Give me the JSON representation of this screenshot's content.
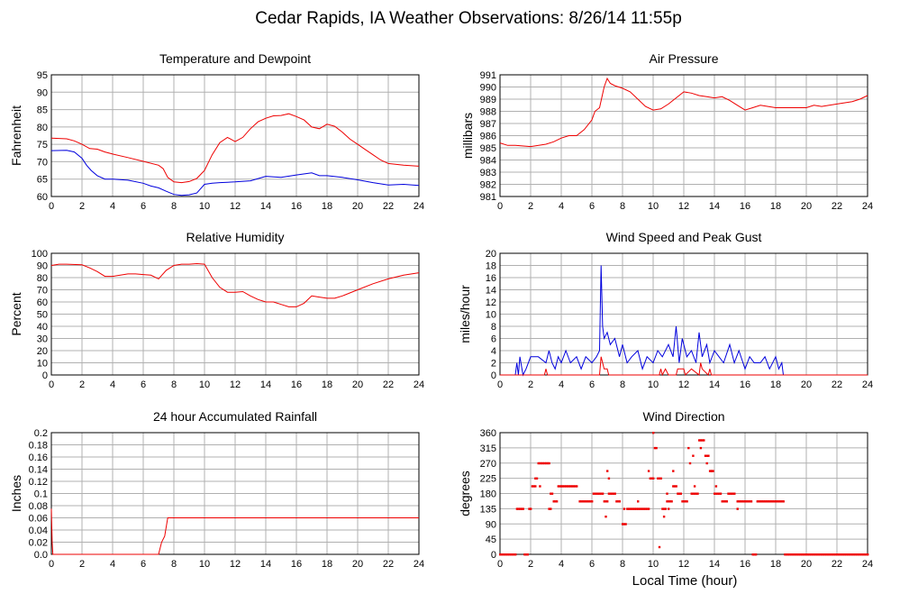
{
  "page": {
    "title": "Cedar Rapids, IA Weather Observations: 8/26/14 11:55p",
    "xlabel": "Local Time (hour)"
  },
  "colors": {
    "red": "#ee0000",
    "blue": "#0000dd",
    "grid": "#b0b0b0"
  },
  "chart_data": [
    {
      "id": "temp",
      "type": "line",
      "title": "Temperature and Dewpoint",
      "ylabel": "Fahrenheit",
      "xlim": [
        0,
        24
      ],
      "ylim": [
        60,
        95
      ],
      "xticks": [
        "0",
        "2",
        "4",
        "6",
        "8",
        "10",
        "12",
        "14",
        "16",
        "18",
        "20",
        "22",
        "24"
      ],
      "yticks": [
        "60",
        "65",
        "70",
        "75",
        "80",
        "85",
        "90",
        "95"
      ],
      "grid": true,
      "series": [
        {
          "color": "red",
          "style": "line",
          "x": [
            0,
            1,
            1.5,
            2,
            2.5,
            3,
            3.5,
            4,
            5,
            6,
            7,
            7.3,
            7.6,
            8,
            8.5,
            9,
            9.5,
            10,
            10.5,
            11,
            11.5,
            12,
            12.5,
            13,
            13.5,
            14,
            14.5,
            15,
            15.5,
            16,
            16.5,
            17,
            17.5,
            18,
            18.5,
            19,
            19.5,
            20,
            20.5,
            21,
            21.5,
            22,
            23,
            24
          ],
          "y": [
            76.8,
            76.6,
            76,
            75,
            73.8,
            73.6,
            72.8,
            72.2,
            71.2,
            70.1,
            69,
            68,
            65.5,
            64.2,
            64,
            64.3,
            65.2,
            67.5,
            72,
            75.5,
            77,
            75.8,
            77,
            79.5,
            81.5,
            82.5,
            83.2,
            83.3,
            83.8,
            83,
            82,
            80,
            79.5,
            80.8,
            80.2,
            78.5,
            76.5,
            75,
            73.5,
            72,
            70.5,
            69.5,
            69,
            68.7
          ]
        },
        {
          "color": "blue",
          "style": "line",
          "x": [
            0,
            1,
            1.5,
            2,
            2.3,
            2.6,
            3,
            3.5,
            4,
            5,
            6,
            6.5,
            7,
            7.5,
            8,
            8.5,
            9,
            9.5,
            10,
            10.5,
            11,
            12,
            13,
            14,
            15,
            16,
            17,
            17.5,
            18,
            19,
            20,
            21,
            22,
            23,
            24
          ],
          "y": [
            73.2,
            73.3,
            72.8,
            71,
            69,
            67.5,
            66,
            65,
            65,
            64.7,
            63.8,
            63,
            62.5,
            61.5,
            60.6,
            60.3,
            60.5,
            61,
            63.5,
            63.8,
            64,
            64.2,
            64.5,
            65.8,
            65.5,
            66.2,
            66.8,
            66,
            66,
            65.5,
            64.8,
            64,
            63.3,
            63.5,
            63.2
          ]
        }
      ]
    },
    {
      "id": "pres",
      "type": "line",
      "title": "Air Pressure",
      "ylabel": "millibars",
      "xlim": [
        0,
        24
      ],
      "ylim": [
        981,
        991
      ],
      "xticks": [
        "0",
        "2",
        "4",
        "6",
        "8",
        "10",
        "12",
        "14",
        "16",
        "18",
        "20",
        "22",
        "24"
      ],
      "yticks": [
        "981",
        "982",
        "983",
        "984",
        "985",
        "986",
        "987",
        "988",
        "989",
        "990",
        "991"
      ],
      "grid": true,
      "series": [
        {
          "color": "red",
          "style": "line",
          "x": [
            0,
            0.5,
            1,
            2,
            3,
            3.5,
            4,
            4.5,
            5,
            5.5,
            6,
            6.2,
            6.5,
            6.8,
            7,
            7.2,
            7.5,
            8,
            8.5,
            9,
            9.5,
            10,
            10.5,
            11,
            11.5,
            12,
            12.5,
            13,
            13.5,
            14,
            14.5,
            15,
            15.5,
            16,
            16.5,
            17,
            17.5,
            18,
            19,
            20,
            20.5,
            21,
            22,
            23,
            23.5,
            24
          ],
          "y": [
            985.4,
            985.2,
            985.2,
            985.1,
            985.3,
            985.5,
            985.8,
            986,
            986,
            986.5,
            987.3,
            988,
            988.3,
            990,
            990.7,
            990.3,
            990.1,
            989.9,
            989.6,
            989,
            988.4,
            988.1,
            988.2,
            988.6,
            989.1,
            989.6,
            989.5,
            989.3,
            989.2,
            989.1,
            989.2,
            988.9,
            988.5,
            988.1,
            988.3,
            988.5,
            988.4,
            988.3,
            988.3,
            988.3,
            988.5,
            988.4,
            988.6,
            988.8,
            989,
            989.3
          ]
        }
      ]
    },
    {
      "id": "rh",
      "type": "line",
      "title": "Relative Humidity",
      "ylabel": "Percent",
      "xlim": [
        0,
        24
      ],
      "ylim": [
        0,
        100
      ],
      "xticks": [
        "0",
        "2",
        "4",
        "6",
        "8",
        "10",
        "12",
        "14",
        "16",
        "18",
        "20",
        "22",
        "24"
      ],
      "yticks": [
        "0",
        "10",
        "20",
        "30",
        "40",
        "50",
        "60",
        "70",
        "80",
        "90",
        "100"
      ],
      "grid": true,
      "series": [
        {
          "color": "red",
          "style": "line",
          "x": [
            0,
            0.5,
            1,
            2,
            2.5,
            3,
            3.5,
            4,
            4.5,
            5,
            5.5,
            6,
            6.5,
            7,
            7.5,
            8,
            8.5,
            9,
            9.5,
            10,
            10.5,
            11,
            11.5,
            12,
            12.5,
            13,
            13.5,
            14,
            14.5,
            15,
            15.5,
            16,
            16.5,
            17,
            17.5,
            18,
            18.5,
            19,
            20,
            21,
            22,
            23,
            24
          ],
          "y": [
            90,
            91,
            91,
            90.5,
            88,
            85,
            81,
            81,
            82,
            83,
            83,
            82.5,
            82,
            79,
            86,
            90,
            91,
            91,
            91.5,
            91,
            80,
            72,
            68,
            68,
            68.5,
            65,
            62,
            60,
            60,
            58,
            56,
            56,
            59,
            65,
            64,
            63,
            63,
            65,
            70,
            75,
            79,
            82,
            84
          ]
        }
      ]
    },
    {
      "id": "wind",
      "type": "line",
      "title": "Wind Speed and Peak Gust",
      "ylabel": "miles/hour",
      "xlim": [
        0,
        24
      ],
      "ylim": [
        0,
        20
      ],
      "xticks": [
        "0",
        "2",
        "4",
        "6",
        "8",
        "10",
        "12",
        "14",
        "16",
        "18",
        "20",
        "22",
        "24"
      ],
      "yticks": [
        "0",
        "2",
        "4",
        "6",
        "8",
        "10",
        "12",
        "14",
        "16",
        "18",
        "20"
      ],
      "grid": true,
      "series": [
        {
          "color": "blue",
          "style": "line",
          "x": [
            0,
            1,
            1.1,
            1.2,
            1.3,
            1.5,
            1.7,
            2,
            2.2,
            2.5,
            3,
            3.2,
            3.4,
            3.6,
            3.8,
            4,
            4.3,
            4.6,
            5,
            5.3,
            5.6,
            6,
            6.3,
            6.5,
            6.6,
            6.7,
            6.8,
            7,
            7.2,
            7.5,
            7.8,
            8,
            8.3,
            8.6,
            9,
            9.3,
            9.6,
            10,
            10.3,
            10.6,
            11,
            11.3,
            11.5,
            11.7,
            11.9,
            12,
            12.2,
            12.5,
            12.8,
            13,
            13.2,
            13.5,
            13.7,
            14,
            14.3,
            14.6,
            15,
            15.3,
            15.6,
            16,
            16.3,
            16.6,
            17,
            17.3,
            17.6,
            18,
            18.2,
            18.4,
            18.5,
            19,
            20,
            22,
            24
          ],
          "y": [
            0,
            0,
            2,
            0,
            3,
            0,
            1,
            3,
            3,
            3,
            2,
            4,
            2,
            1,
            3,
            2,
            4,
            2,
            3,
            1,
            3,
            2,
            3,
            4,
            18,
            8,
            6,
            7,
            5,
            6,
            3,
            5,
            2,
            3,
            4,
            1,
            3,
            2,
            4,
            3,
            5,
            3,
            8,
            2,
            6,
            5,
            3,
            4,
            2,
            7,
            3,
            5,
            2,
            4,
            3,
            2,
            5,
            2,
            4,
            1,
            3,
            2,
            2,
            3,
            1,
            3,
            1,
            2,
            0,
            0,
            0,
            0,
            0
          ]
        },
        {
          "color": "red",
          "style": "line",
          "x": [
            0,
            2.9,
            3,
            3.1,
            3.2,
            6,
            6.5,
            6.6,
            6.8,
            7,
            7.1,
            7.2,
            8,
            10.4,
            10.5,
            10.6,
            10.8,
            11,
            11.5,
            11.6,
            12,
            12.1,
            12.5,
            13,
            13.1,
            13.2,
            13.6,
            13.7,
            13.8,
            14,
            24
          ],
          "y": [
            0,
            0,
            1,
            0,
            0,
            0,
            0,
            3,
            1,
            1,
            0,
            0,
            0,
            0,
            1,
            0,
            1,
            0,
            0,
            1,
            1,
            0,
            1,
            0,
            2,
            1,
            0,
            1,
            0,
            0,
            0
          ]
        }
      ]
    },
    {
      "id": "rain",
      "type": "line",
      "title": "24 hour Accumulated Rainfall",
      "ylabel": "Inches",
      "xlim": [
        0,
        24
      ],
      "ylim": [
        0,
        0.2
      ],
      "xticks": [
        "0",
        "2",
        "4",
        "6",
        "8",
        "10",
        "12",
        "14",
        "16",
        "18",
        "20",
        "22",
        "24"
      ],
      "yticks": [
        "0.0",
        "0.02",
        "0.04",
        "0.06",
        "0.08",
        "0.1",
        "0.12",
        "0.14",
        "0.16",
        "0.18",
        "0.2"
      ],
      "grid": true,
      "series": [
        {
          "color": "red",
          "style": "line",
          "x": [
            0,
            0.05,
            0.1,
            0.2,
            7,
            7.2,
            7.4,
            7.5,
            7.6,
            24
          ],
          "y": [
            0.075,
            0.02,
            0,
            0,
            0,
            0.02,
            0.03,
            0.045,
            0.06,
            0.06
          ]
        }
      ]
    },
    {
      "id": "dir",
      "type": "scatter",
      "title": "Wind Direction",
      "ylabel": "degrees",
      "xlim": [
        0,
        24
      ],
      "ylim": [
        0,
        360
      ],
      "xticks": [
        "0",
        "2",
        "4",
        "6",
        "8",
        "10",
        "12",
        "14",
        "16",
        "18",
        "20",
        "22",
        "24"
      ],
      "yticks": [
        "0",
        "45",
        "90",
        "135",
        "180",
        "225",
        "270",
        "315",
        "360"
      ],
      "grid": true,
      "series": [
        {
          "color": "red",
          "style": "points",
          "segments": [
            [
              0,
              1,
              0
            ],
            [
              1.1,
              1.5,
              135
            ],
            [
              1.6,
              1.8,
              0
            ],
            [
              1.9,
              2.0,
              135
            ],
            [
              2.1,
              2.3,
              202
            ],
            [
              2.3,
              2.4,
              225
            ],
            [
              2.5,
              3.2,
              270
            ],
            [
              3.2,
              3.3,
              135
            ],
            [
              3.3,
              3.4,
              180
            ],
            [
              3.5,
              3.7,
              157
            ],
            [
              3.8,
              5.0,
              202
            ],
            [
              5.2,
              6.0,
              157
            ],
            [
              6.1,
              6.7,
              180
            ],
            [
              6.8,
              7.0,
              157
            ],
            [
              7.1,
              7.5,
              180
            ],
            [
              7.6,
              7.8,
              157
            ],
            [
              8.0,
              8.1,
              90
            ],
            [
              8.3,
              8.5,
              135
            ],
            [
              8.6,
              9.7,
              135
            ],
            [
              9.8,
              10.0,
              225
            ],
            [
              10.1,
              10.2,
              315
            ],
            [
              10.3,
              10.5,
              225
            ],
            [
              10.6,
              10.8,
              135
            ],
            [
              10.9,
              11.2,
              157
            ],
            [
              11.3,
              11.5,
              202
            ],
            [
              11.6,
              11.8,
              180
            ],
            [
              11.9,
              12.2,
              157
            ],
            [
              12.5,
              12.9,
              180
            ],
            [
              13.0,
              13.3,
              338
            ],
            [
              13.4,
              13.6,
              292
            ],
            [
              13.7,
              13.9,
              247
            ],
            [
              14.0,
              14.4,
              180
            ],
            [
              14.5,
              14.8,
              157
            ],
            [
              14.9,
              15.3,
              180
            ],
            [
              15.5,
              15.8,
              157
            ],
            [
              15.9,
              16.4,
              157
            ],
            [
              16.5,
              16.7,
              0
            ],
            [
              16.8,
              18.5,
              157
            ],
            [
              18.6,
              24,
              0
            ]
          ],
          "x": [
            2.6,
            6.9,
            7.0,
            7.1,
            8.1,
            8.2,
            9.0,
            9.7,
            9.9,
            10.0,
            10.4,
            10.7,
            10.9,
            11.0,
            11.3,
            12.3,
            12.4,
            12.6,
            12.7,
            13.1,
            13.5,
            13.8,
            14.1,
            15.5
          ],
          "y": [
            202,
            112,
            247,
            225,
            135,
            90,
            157,
            247,
            225,
            360,
            22,
            112,
            180,
            135,
            247,
            315,
            270,
            292,
            202,
            315,
            270,
            247,
            202,
            135
          ]
        }
      ]
    }
  ]
}
